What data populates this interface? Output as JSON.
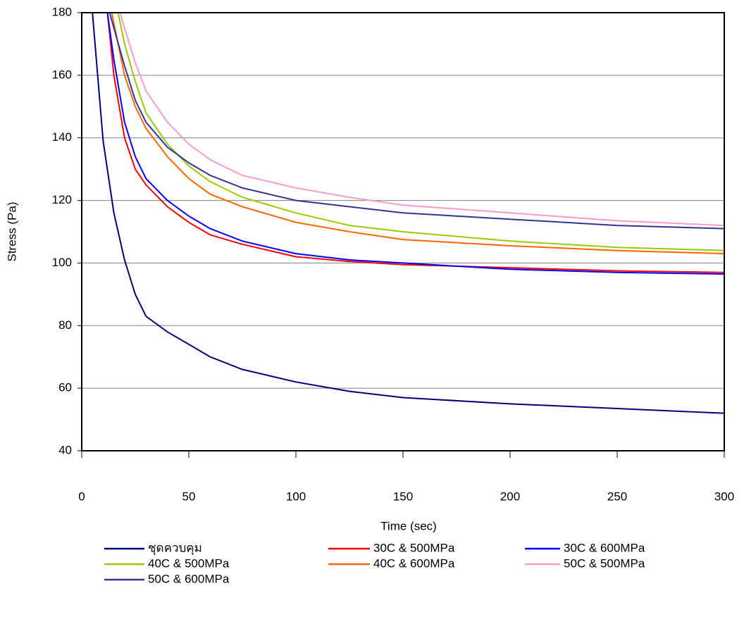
{
  "chart_data": {
    "type": "line",
    "x_label": "Time (sec)",
    "y_label": "Stress (Pa)",
    "xlim": [
      0,
      300
    ],
    "xticks": [
      0,
      50,
      100,
      150,
      200,
      250,
      300
    ],
    "ylim": [
      40,
      180
    ],
    "yticks": [
      40,
      60,
      80,
      100,
      120,
      140,
      160,
      180
    ],
    "grid": true,
    "series": [
      {
        "name": "ชุดควบคุม",
        "color": "#000080",
        "x": [
          5,
          10,
          15,
          20,
          25,
          30,
          40,
          50,
          60,
          75,
          100,
          125,
          150,
          200,
          250,
          300
        ],
        "values": [
          180,
          139,
          116,
          101,
          90,
          83,
          78,
          74,
          70,
          66,
          62,
          59,
          57,
          55,
          53.5,
          52
        ]
      },
      {
        "name": "30C & 500MPa",
        "color": "#ff0000",
        "x": [
          12,
          15,
          20,
          25,
          30,
          40,
          50,
          60,
          75,
          100,
          125,
          150,
          200,
          250,
          300
        ],
        "values": [
          180,
          160,
          140,
          130,
          125,
          118,
          113,
          109,
          106,
          102,
          100.5,
          99.5,
          98.5,
          97.5,
          97
        ]
      },
      {
        "name": "30C & 600MPa",
        "color": "#0000ff",
        "x": [
          12,
          15,
          20,
          25,
          30,
          40,
          50,
          60,
          75,
          100,
          125,
          150,
          200,
          250,
          300
        ],
        "values": [
          180,
          165,
          145,
          134,
          127,
          120,
          115,
          111,
          107,
          103,
          101,
          100,
          98,
          97,
          96.5
        ]
      },
      {
        "name": "40C & 500MPa",
        "color": "#99cc00",
        "x": [
          17,
          20,
          25,
          30,
          40,
          50,
          60,
          75,
          100,
          125,
          150,
          200,
          250,
          300
        ],
        "values": [
          180,
          170,
          158,
          148,
          138,
          131,
          126,
          121,
          116,
          112,
          110,
          107,
          105,
          104
        ]
      },
      {
        "name": "40C & 600MPa",
        "color": "#ff6600",
        "x": [
          14,
          20,
          25,
          30,
          40,
          50,
          60,
          75,
          100,
          125,
          150,
          200,
          250,
          300
        ],
        "values": [
          180,
          160,
          150,
          143,
          134,
          127,
          122,
          118,
          113,
          110,
          107.5,
          105.5,
          104,
          103
        ]
      },
      {
        "name": "50C & 500MPa",
        "color": "#ff99cc",
        "x": [
          18,
          20,
          25,
          30,
          40,
          50,
          60,
          75,
          100,
          125,
          150,
          200,
          250,
          300
        ],
        "values": [
          180,
          175,
          164,
          155,
          145,
          138,
          133,
          128,
          124,
          121,
          118.5,
          116,
          113.5,
          112
        ]
      },
      {
        "name": "50C & 600MPa",
        "color": "#333399",
        "x": [
          13,
          20,
          25,
          30,
          40,
          50,
          60,
          75,
          100,
          125,
          150,
          200,
          250,
          300
        ],
        "values": [
          180,
          163,
          152,
          145,
          137,
          132,
          128,
          124,
          120,
          118,
          116,
          114,
          112,
          111
        ]
      }
    ]
  }
}
